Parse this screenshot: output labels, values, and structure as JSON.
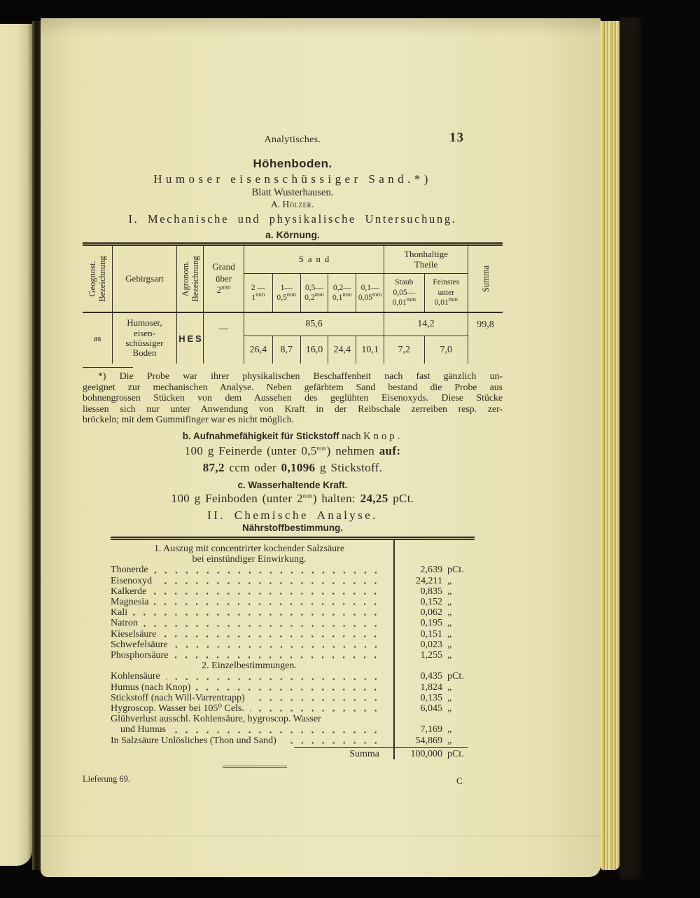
{
  "header": {
    "running_head": "Analytisches.",
    "page_number": "13",
    "title": "Höhenboden.",
    "subtitle": "Humoser eisenschüssiger Sand.*)",
    "sheet": "Blatt Wusterhausen.",
    "author_prefix": "A.",
    "author_name": "Hölzer.",
    "section_i": "I. Mechanische und physikalische Untersuchung.",
    "koernung": "a. Körnung."
  },
  "units": {
    "mm": "mm"
  },
  "grain_table": {
    "geognost": {
      "l1": "Geognost.",
      "l2": "Bezeichnung"
    },
    "gebirgsart": "Gebirgsart",
    "agronom": {
      "l1": "Agronom.",
      "l2": "Bezeichnung"
    },
    "grand": {
      "l1": "Grand",
      "l2": "über",
      "l3": "2"
    },
    "sand_heading": "Sand",
    "sand_cols": [
      {
        "t": "2 —",
        "b": "1"
      },
      {
        "t": "1—",
        "b": "0,5"
      },
      {
        "t": "0,5—",
        "b": "0,2"
      },
      {
        "t": "0,2—",
        "b": "0,1"
      },
      {
        "t": "0,1—",
        "b": "0,05"
      }
    ],
    "thon": {
      "l1": "Thonhaltige",
      "l2": "Theile"
    },
    "staub": {
      "l1": "Staub",
      "l2": "0,05—",
      "l3": "0,01"
    },
    "feinstes": {
      "l1": "Feinstes",
      "l2": "unter",
      "l3": "0,01"
    },
    "summa_heading": "Summa",
    "row": {
      "geognost": "as",
      "gebirgsart": {
        "l1": "Humoser,",
        "l2": "eisen-",
        "l3": "schüssiger",
        "l4": "Boden"
      },
      "agronom": "HES",
      "grand": "—",
      "sand_total": "85,6",
      "sand_values": [
        "26,4",
        "8,7",
        "16,0",
        "24,4",
        "10,1"
      ],
      "thon_total": "14,2",
      "thon_values": [
        "7,2",
        "7,0"
      ],
      "summa": "99,8"
    }
  },
  "footnote": {
    "lines": [
      "*) Die Probe war ihrer physikalischen Beschaffenheit nach fast gänzlich un-",
      "geeignet zur mechanischen Analyse. Neben gefärbtem Sand bestand die Probe aus",
      "bohnengrossen Stücken von dem Aussehen des geglühten Eisenoxyds. Diese Stücke",
      "liessen sich nur unter Anwendung von Kraft in der Reibschale zerreiben resp. zer-",
      "bröckeln; mit dem Gummifinger war es nicht möglich."
    ]
  },
  "section_b": {
    "title_bold": "b. Aufnahmefähigkeit für Stickstoff",
    "title_nach": " nach ",
    "title_name": "Knop.",
    "line1_a": "100 g Feinerde (unter 0,5",
    "line1_b": ") nehmen ",
    "line1_bold": "auf:",
    "line2_v1": "87,2",
    "line2_mid": " ccm oder ",
    "line2_v2": "0,1096",
    "line2_end": " g Stickstoff."
  },
  "section_c": {
    "title": "c. Wasserhaltende Kraft.",
    "line_a": "100 g Feinboden (unter 2",
    "line_b": ") halten: ",
    "line_bold": "24,25",
    "line_end": " pCt."
  },
  "chem": {
    "heading": "II. Chemische Analyse.",
    "subheading": "Nährstoffbestimmung.",
    "s1_title1": "1. Auszug mit concentrirter kochender Salzsäure",
    "s1_title2": "bei einstündiger Einwirkung.",
    "s1_rows": [
      {
        "label": "Thonerde",
        "value": "2,639",
        "unit": "pCt."
      },
      {
        "label": "Eisenoxyd",
        "value": "24,211",
        "unit": "„"
      },
      {
        "label": "Kalkerde",
        "value": "0,835",
        "unit": "„"
      },
      {
        "label": "Magnesia",
        "value": "0,152",
        "unit": "„"
      },
      {
        "label": "Kali",
        "value": "0,062",
        "unit": "„"
      },
      {
        "label": "Natron",
        "value": "0,195",
        "unit": "„"
      },
      {
        "label": "Kieselsäure",
        "value": "0,151",
        "unit": "„"
      },
      {
        "label": "Schwefelsäure",
        "value": "0,023",
        "unit": "„"
      },
      {
        "label": "Phosphorsäure",
        "value": "1,255",
        "unit": "„"
      }
    ],
    "s2_title": "2. Einzelbestimmungen.",
    "s2_rows": [
      {
        "label": "Kohlensäure",
        "value": "0,435",
        "unit": "pCt."
      },
      {
        "label": "Humus (nach Knop)",
        "value": "1,824",
        "unit": "„"
      },
      {
        "label": "Stickstoff (nach Will-Varrentrapp)",
        "value": "0,135",
        "unit": "„"
      },
      {
        "label": "Hygroscop. Wasser bei 105⁰ Cels.",
        "value": "6,045",
        "unit": "„"
      },
      {
        "label": "Glühverlust ausschl. Kohlensäure, hygroscop. Wasser",
        "label2": "und Humus",
        "value": "7,169",
        "unit": "„"
      },
      {
        "label": "In Salzsäure Unlösliches (Thon und Sand)",
        "value": "54,869",
        "unit": "„"
      }
    ],
    "summa_label": "Summa",
    "summa_value": "100,000",
    "summa_unit": "pCt."
  },
  "footer": {
    "left": "Lieferung 69.",
    "right": "C"
  }
}
